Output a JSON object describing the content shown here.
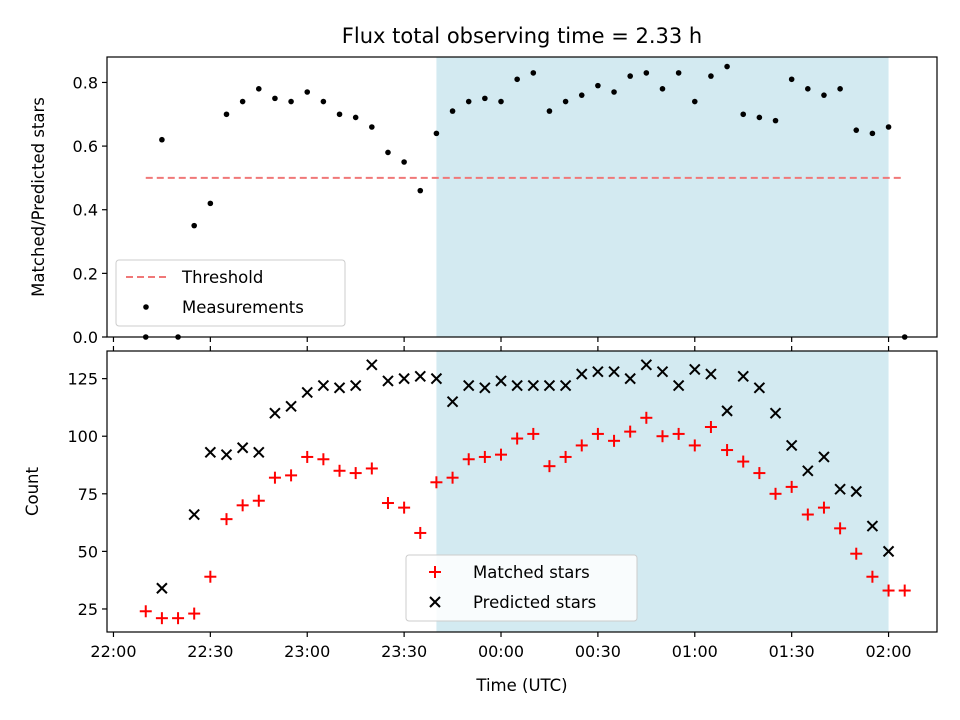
{
  "title": "Flux total observing time = 2.33 h",
  "chart_data": [
    {
      "type": "scatter",
      "ylabel": "Matched/Predicted stars",
      "xlabel": "",
      "ylim": [
        0,
        0.88
      ],
      "yticks": [
        0.0,
        0.2,
        0.4,
        0.6,
        0.8
      ],
      "ytick_labels": [
        "0.0",
        "0.2",
        "0.4",
        "0.6",
        "0.8"
      ],
      "threshold": {
        "name": "Threshold",
        "value": 0.5,
        "x_range": [
          10,
          245
        ],
        "color": "#f07878",
        "style": "dashed"
      },
      "shaded_range": [
        100,
        240
      ],
      "shade_color": "#d3eaf1",
      "legend_position": "lower left",
      "series": [
        {
          "name": "Measurements",
          "marker": "dot",
          "color": "#000000",
          "x": [
            10,
            15,
            20,
            25,
            30,
            35,
            40,
            45,
            50,
            55,
            60,
            65,
            70,
            75,
            80,
            85,
            90,
            95,
            100,
            105,
            110,
            115,
            120,
            125,
            130,
            135,
            140,
            145,
            150,
            155,
            160,
            165,
            170,
            175,
            180,
            185,
            190,
            195,
            200,
            205,
            210,
            215,
            220,
            225,
            230,
            235,
            240,
            245
          ],
          "y": [
            0.0,
            0.62,
            0.0,
            0.35,
            0.42,
            0.7,
            0.74,
            0.78,
            0.75,
            0.74,
            0.77,
            0.74,
            0.7,
            0.69,
            0.66,
            0.58,
            0.55,
            0.46,
            0.64,
            0.71,
            0.74,
            0.75,
            0.74,
            0.81,
            0.83,
            0.71,
            0.74,
            0.76,
            0.79,
            0.77,
            0.82,
            0.83,
            0.78,
            0.83,
            0.74,
            0.82,
            0.85,
            0.7,
            0.69,
            0.68,
            0.81,
            0.78,
            0.76,
            0.78,
            0.65,
            0.64,
            0.66,
            0.0
          ]
        }
      ]
    },
    {
      "type": "scatter",
      "ylabel": "Count",
      "xlabel": "Time (UTC)",
      "xlim": [
        -2,
        255
      ],
      "ylim": [
        15,
        137
      ],
      "yticks": [
        25,
        50,
        75,
        100,
        125
      ],
      "ytick_labels": [
        "25",
        "50",
        "75",
        "100",
        "125"
      ],
      "xticks": [
        0,
        30,
        60,
        90,
        120,
        150,
        180,
        210,
        240
      ],
      "xtick_labels": [
        "22:00",
        "22:30",
        "23:00",
        "23:30",
        "00:00",
        "00:30",
        "01:00",
        "01:30",
        "02:00"
      ],
      "shaded_range": [
        100,
        240
      ],
      "shade_color": "#d3eaf1",
      "legend_position": "lower center",
      "series": [
        {
          "name": "Matched stars",
          "marker": "plus",
          "color": "#ff0000",
          "x": [
            10,
            15,
            20,
            25,
            30,
            35,
            40,
            45,
            50,
            55,
            60,
            65,
            70,
            75,
            80,
            85,
            90,
            95,
            100,
            105,
            110,
            115,
            120,
            125,
            130,
            135,
            140,
            145,
            150,
            155,
            160,
            165,
            170,
            175,
            180,
            185,
            190,
            195,
            200,
            205,
            210,
            215,
            220,
            225,
            230,
            235,
            240,
            245
          ],
          "y": [
            24,
            21,
            21,
            23,
            39,
            64,
            70,
            72,
            82,
            83,
            91,
            90,
            85,
            84,
            86,
            71,
            69,
            58,
            80,
            82,
            90,
            91,
            92,
            99,
            101,
            87,
            91,
            96,
            101,
            98,
            102,
            108,
            100,
            101,
            96,
            104,
            94,
            89,
            84,
            75,
            78,
            66,
            69,
            60,
            49,
            39,
            33,
            33
          ]
        },
        {
          "name": "Predicted stars",
          "marker": "x",
          "color": "#000000",
          "x": [
            15,
            25,
            30,
            35,
            40,
            45,
            50,
            55,
            60,
            65,
            70,
            75,
            80,
            85,
            90,
            95,
            100,
            105,
            110,
            115,
            120,
            125,
            130,
            135,
            140,
            145,
            150,
            155,
            160,
            165,
            170,
            175,
            180,
            185,
            190,
            195,
            200,
            205,
            210,
            215,
            220,
            225,
            230,
            235,
            240
          ],
          "y": [
            34,
            66,
            93,
            92,
            95,
            93,
            110,
            113,
            119,
            122,
            121,
            122,
            131,
            124,
            125,
            126,
            125,
            115,
            122,
            121,
            124,
            122,
            122,
            122,
            122,
            127,
            128,
            128,
            125,
            131,
            128,
            122,
            129,
            127,
            111,
            126,
            121,
            110,
            96,
            85,
            91,
            77,
            76,
            61,
            50
          ]
        }
      ]
    }
  ]
}
